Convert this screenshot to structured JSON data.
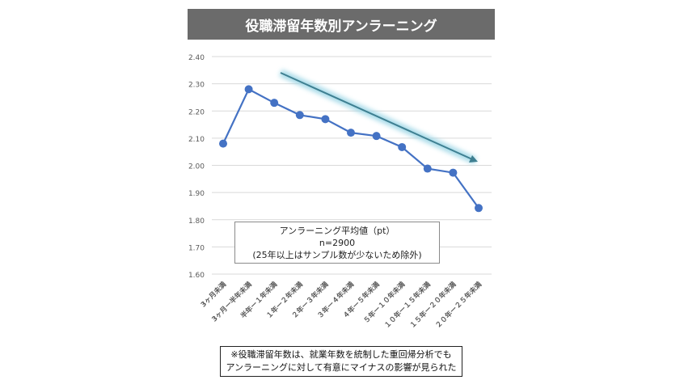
{
  "title": "役職滞留年数別アンラーニング",
  "chart_data": {
    "type": "line",
    "title": "役職滞留年数別アンラーニング",
    "categories": [
      "3ヶ月未満",
      "3ヶ月ー半年未満",
      "半年ー１年未満",
      "１年ー２年未満",
      "２年ー３年未満",
      "３年ー４年未満",
      "４年ー５年未満",
      "５年ー１０年未満",
      "１０年ー１５年未満",
      "１５年ー２０年未満",
      "２０年ー２５年未満"
    ],
    "series": [
      {
        "name": "アンラーニング平均値（pt）",
        "values": [
          2.08,
          2.28,
          2.23,
          2.185,
          2.17,
          2.12,
          2.108,
          2.067,
          1.988,
          1.973,
          1.843
        ]
      }
    ],
    "ylim": [
      1.6,
      2.4
    ],
    "yticks": [
      "1.60",
      "1.70",
      "1.80",
      "1.90",
      "2.00",
      "2.10",
      "2.20",
      "2.30",
      "2.40"
    ],
    "grid": true,
    "series_color": "#4472c4",
    "trend_color": "#3e7f91",
    "legend_lines": [
      "アンラーニング平均値（pt）",
      "n=2900",
      "(25年以上はサンプル数が少ないため除外)"
    ]
  },
  "note_lines": [
    "※役職滞留年数は、就業年数を統制した重回帰分析でも",
    "アンラーニングに対して有意にマイナスの影響が見られた"
  ]
}
